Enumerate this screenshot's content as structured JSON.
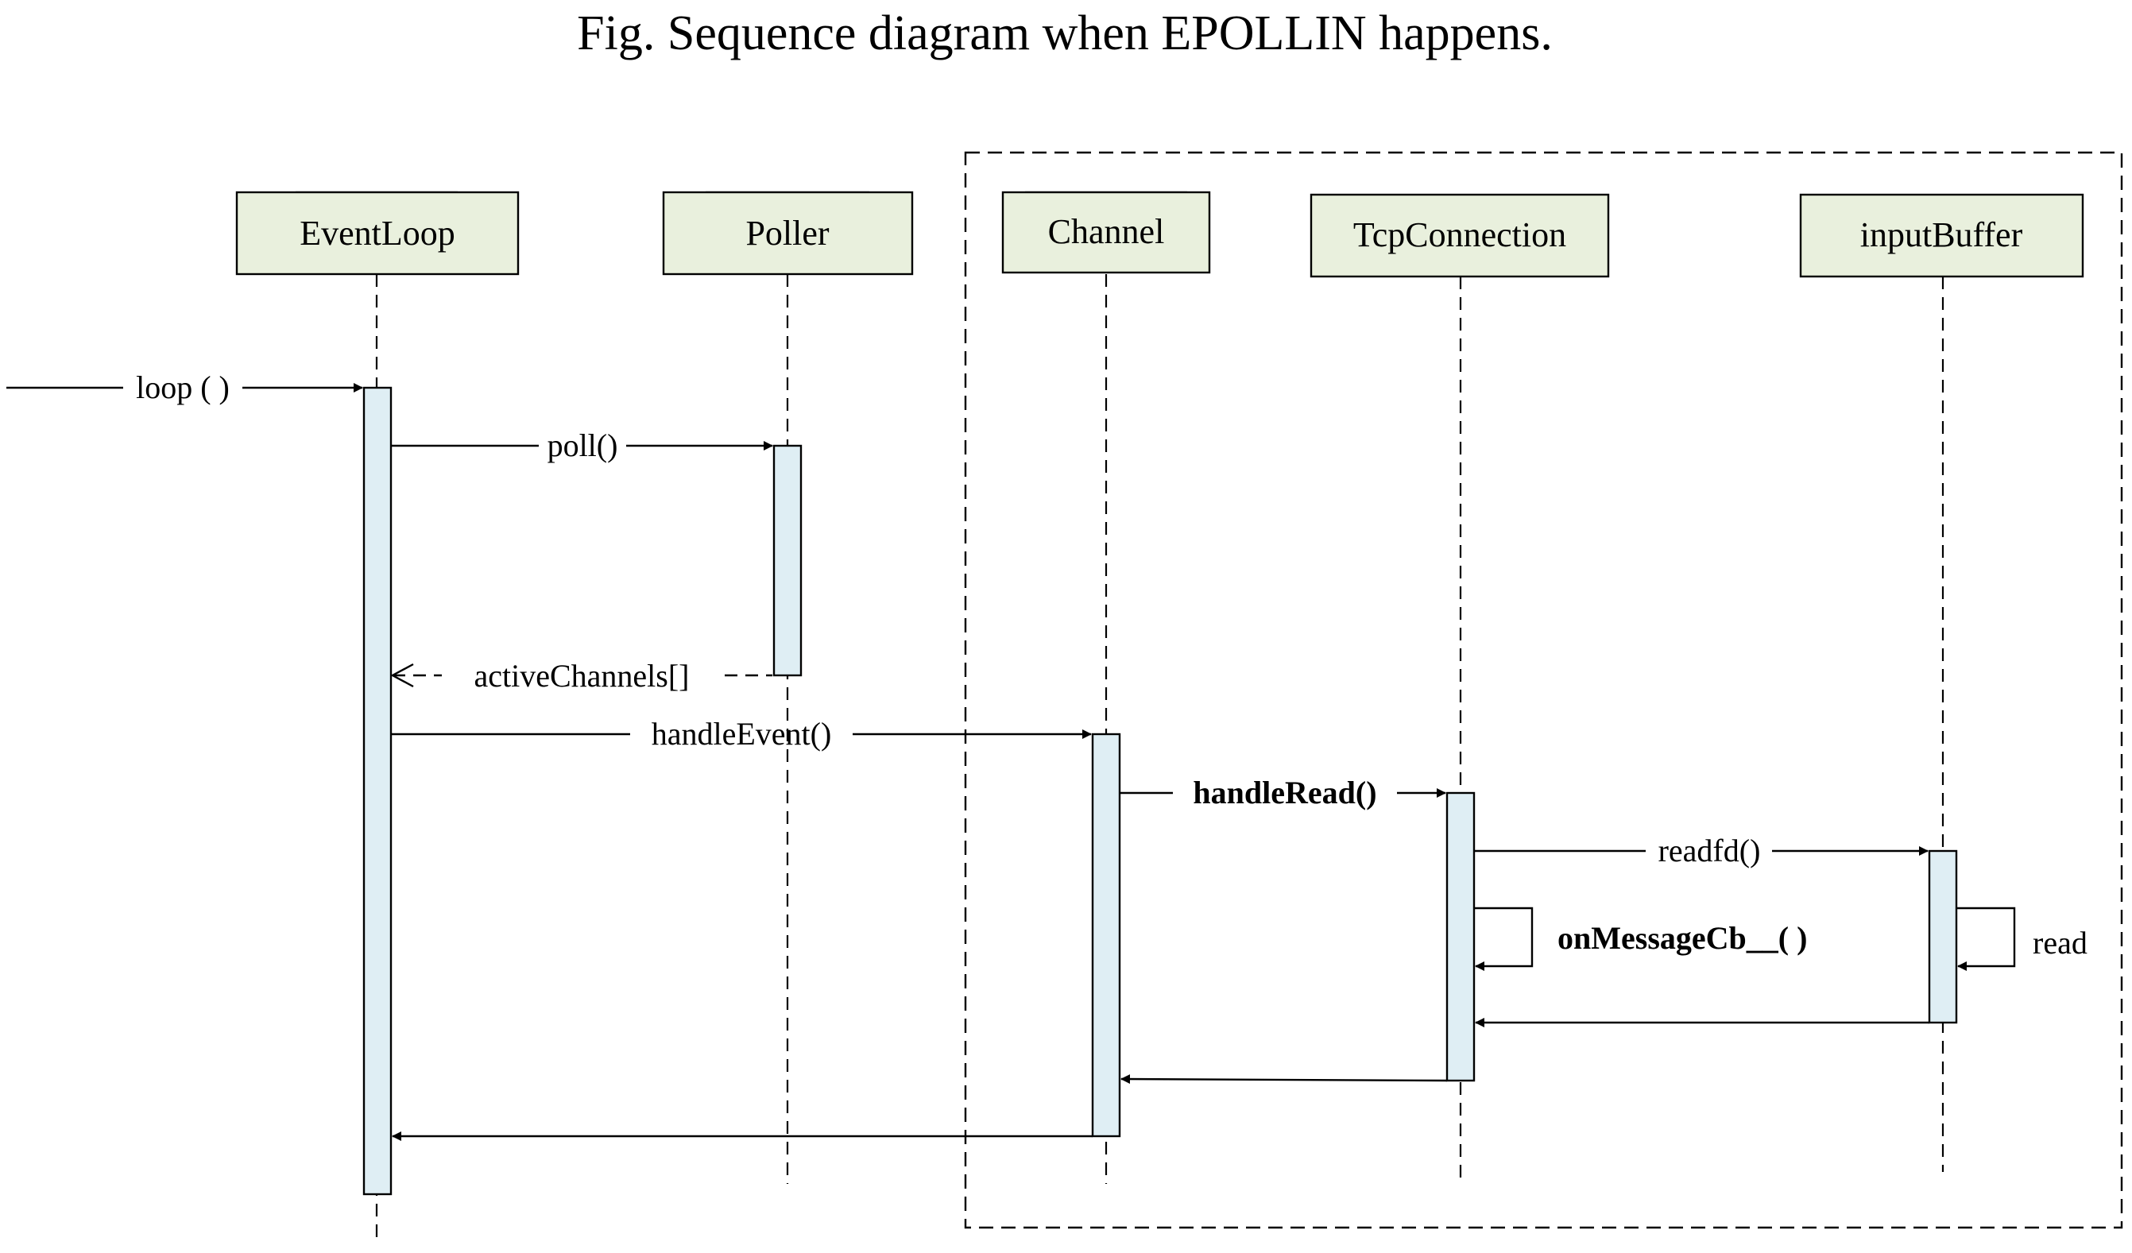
{
  "title": "Fig. Sequence diagram when EPOLLIN happens.",
  "objects": [
    {
      "id": "eventloop",
      "label": "EventLoop"
    },
    {
      "id": "poller",
      "label": "Poller"
    },
    {
      "id": "channel",
      "label": "Channel"
    },
    {
      "id": "tcpconnection",
      "label": "TcpConnection"
    },
    {
      "id": "inputbuffer",
      "label": "inputBuffer"
    }
  ],
  "messages": {
    "loop": "loop ( )",
    "poll": "poll()",
    "active_channels": "activeChannels[]",
    "handle_event": "handleEvent()",
    "handle_read": "handleRead()",
    "readfd": "readfd()",
    "on_message": "onMessageCb__( )",
    "read": "read"
  }
}
